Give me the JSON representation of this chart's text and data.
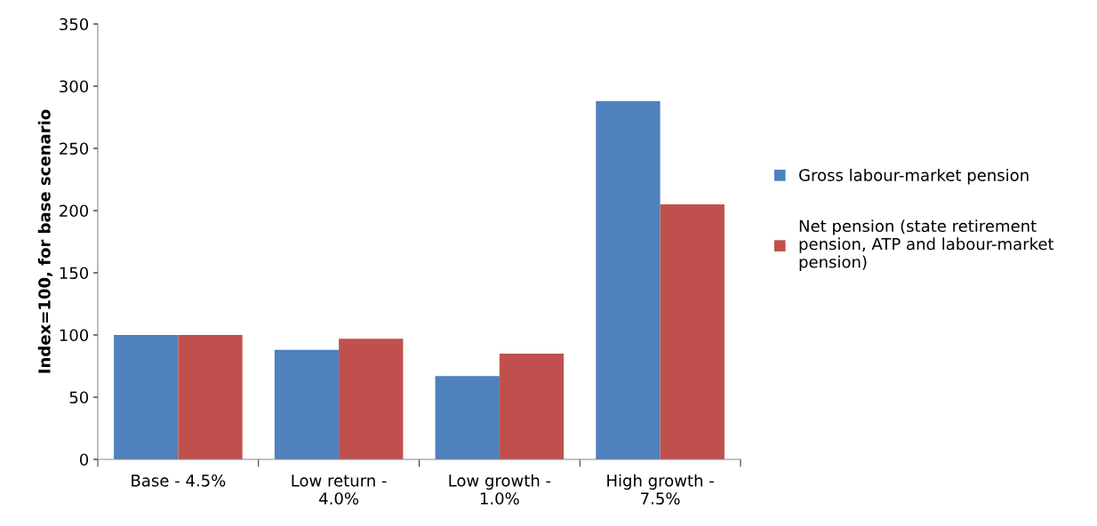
{
  "chart_data": {
    "type": "bar",
    "ylabel": "Index=100, for base scenario",
    "categories": [
      "Base - 4.5%",
      "Low return -\n4.0%",
      "Low growth -\n1.0%",
      "High growth -\n7.5%"
    ],
    "series": [
      {
        "name": "Gross labour-market pension",
        "color": "#4f81bd",
        "values": [
          100,
          88,
          67,
          288
        ]
      },
      {
        "name": "Net pension (state retirement\npension, ATP and labour-market\npension)",
        "color": "#c0504d",
        "values": [
          100,
          97,
          85,
          205
        ]
      }
    ],
    "ylim": [
      0,
      350
    ],
    "yticks": [
      0,
      50,
      100,
      150,
      200,
      250,
      300,
      350
    ],
    "grid": false,
    "legend": "right"
  }
}
